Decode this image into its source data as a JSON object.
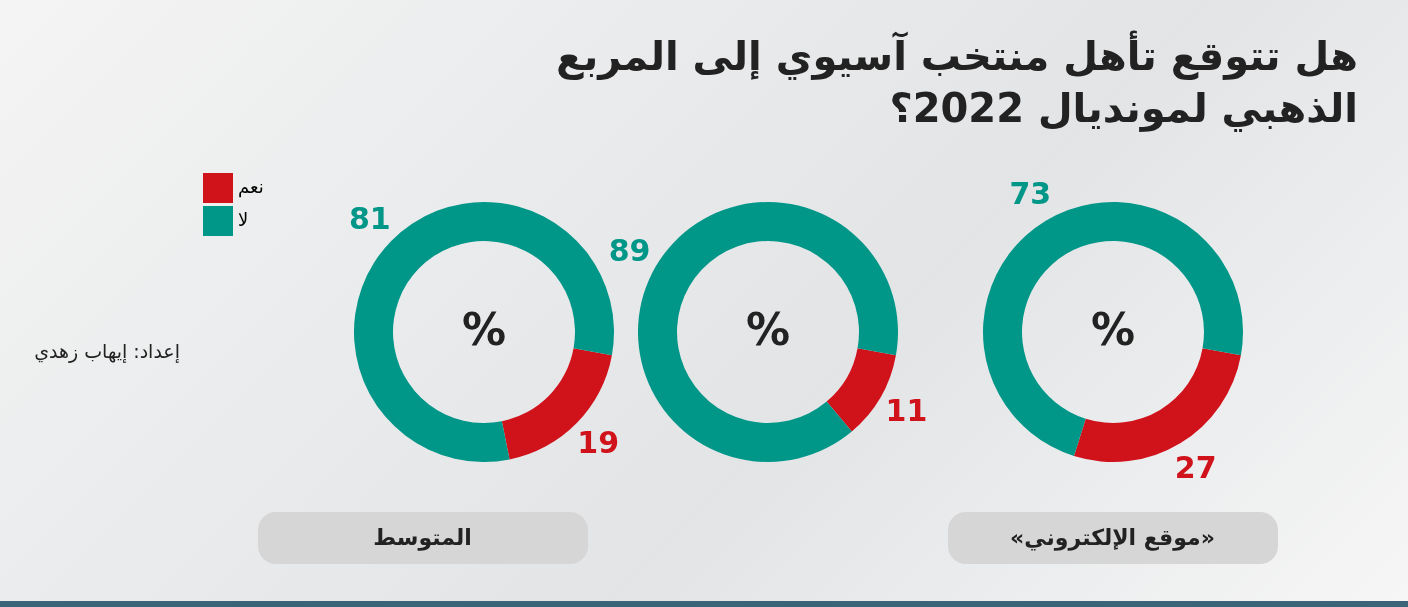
{
  "chart_data": [
    {
      "type": "other",
      "title": "هل تتوقع تأهل منتخب آسيوي إلى المربع الذهبي لمونديال 2022؟",
      "annotations": [
        "إعداد: إيهاب زهدي"
      ]
    },
    {
      "type": "donut",
      "title": "المتوسط",
      "categories": [
        "نعم",
        "لا"
      ],
      "values": [
        19,
        81
      ],
      "colors": [
        "#d0121b",
        "#009688"
      ],
      "data_labels": true,
      "annotations": [
        "%"
      ],
      "legend": "left"
    },
    {
      "type": "donut",
      "categories": [
        null,
        null
      ],
      "values": [
        11,
        89
      ],
      "colors": [
        "#d0121b",
        "#009688"
      ],
      "data_labels": true,
      "annotations": [
        "%"
      ]
    },
    {
      "type": "donut",
      "title": "«موقع الإلكتروني»",
      "categories": [
        null,
        null
      ],
      "values": [
        27,
        73
      ],
      "colors": [
        "#d0121b",
        "#009688"
      ],
      "data_labels": true,
      "annotations": [
        "%"
      ]
    }
  ]
}
